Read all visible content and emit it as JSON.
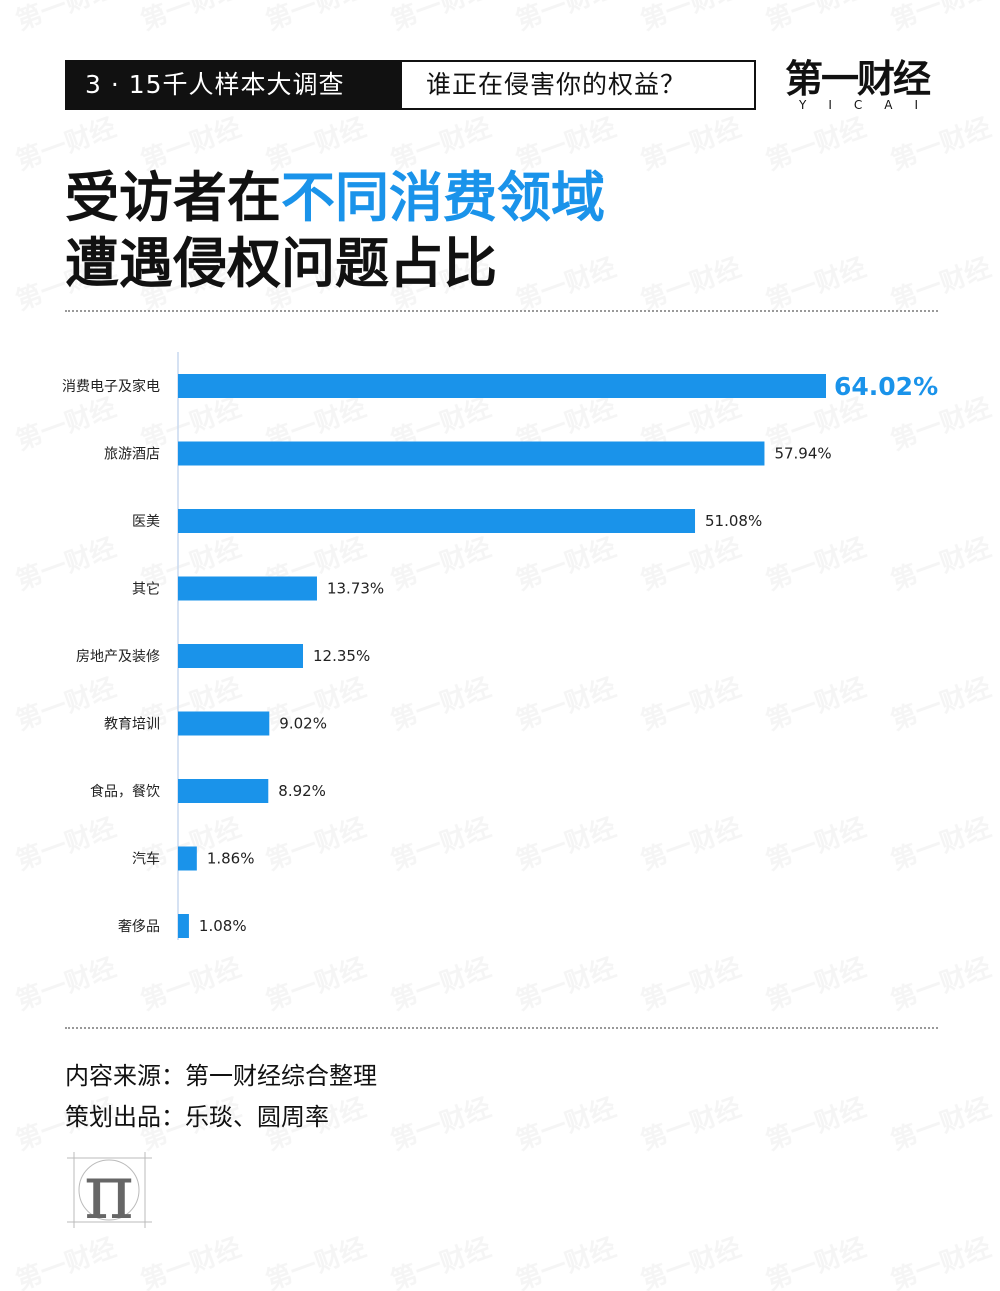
{
  "header": {
    "tag_dark": "3 · 15千人样本大调查",
    "tag_light": "谁正在侵害你的权益？"
  },
  "logo": {
    "main": "第一财经",
    "sub": "YICAI"
  },
  "title": {
    "line1_prefix": "受访者在",
    "line1_highlight": "不同消费领域",
    "line2": "遭遇侵权问题占比"
  },
  "chart_data": {
    "type": "bar",
    "orientation": "horizontal",
    "categories": [
      "消费电子及家电",
      "旅游酒店",
      "医美",
      "其它",
      "房地产及装修",
      "教育培训",
      "食品，餐饮",
      "汽车",
      "奢侈品"
    ],
    "values": [
      64.02,
      57.94,
      51.08,
      13.73,
      12.35,
      9.02,
      8.92,
      1.86,
      1.08
    ],
    "value_labels": [
      "64.02%",
      "57.94%",
      "51.08%",
      "13.73%",
      "12.35%",
      "9.02%",
      "8.92%",
      "1.86%",
      "1.08%"
    ],
    "xlim": [
      0,
      70
    ],
    "bar_color": "#1a93ea",
    "highlight_label_color": "#1a93ea",
    "grid": false
  },
  "footer": {
    "source": "内容来源：第一财经综合整理",
    "producer": "策划出品：乐琰、圆周率"
  },
  "pi_logo": "π",
  "colors": {
    "accent": "#1a93ea",
    "dark": "#111111"
  }
}
